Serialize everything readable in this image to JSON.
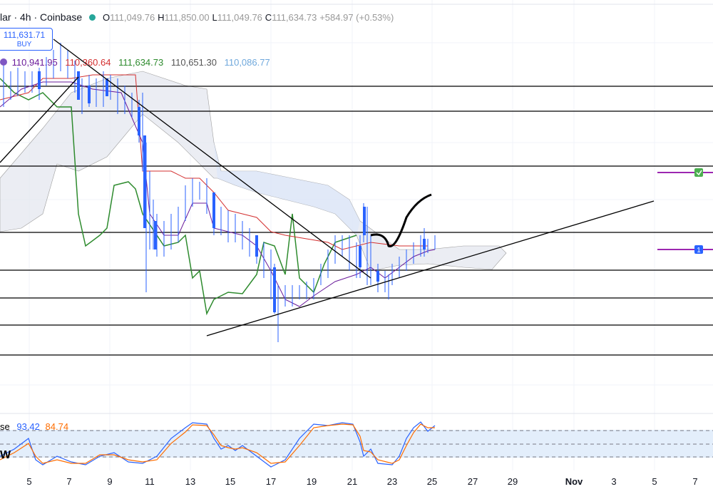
{
  "header": {
    "symbol": "lar · 4h · Coinbase",
    "ohlc": [
      {
        "key": "O",
        "value": "111,049.76"
      },
      {
        "key": "H",
        "value": "111,850.00"
      },
      {
        "key": "L",
        "value": "111,049.76"
      },
      {
        "key": "C",
        "value": "111,634.73"
      }
    ],
    "change": "+584.97 (+0.53%)"
  },
  "price_badge": {
    "price": "111,631.71",
    "action": "BUY"
  },
  "ichimoku": {
    "values": [
      "110,941.95",
      "110,360.64",
      "111,634.73",
      "110,651.30",
      "110,086.77"
    ]
  },
  "stoch": {
    "label": "se",
    "values": [
      "93.42",
      "84.74"
    ],
    "side_label": "W"
  },
  "markers": {
    "alert": "1"
  },
  "x_axis": {
    "labels": [
      "5",
      "7",
      "9",
      "11",
      "13",
      "15",
      "17",
      "19",
      "21",
      "23",
      "25",
      "27",
      "29",
      "Nov",
      "3",
      "5",
      "7"
    ]
  }
}
